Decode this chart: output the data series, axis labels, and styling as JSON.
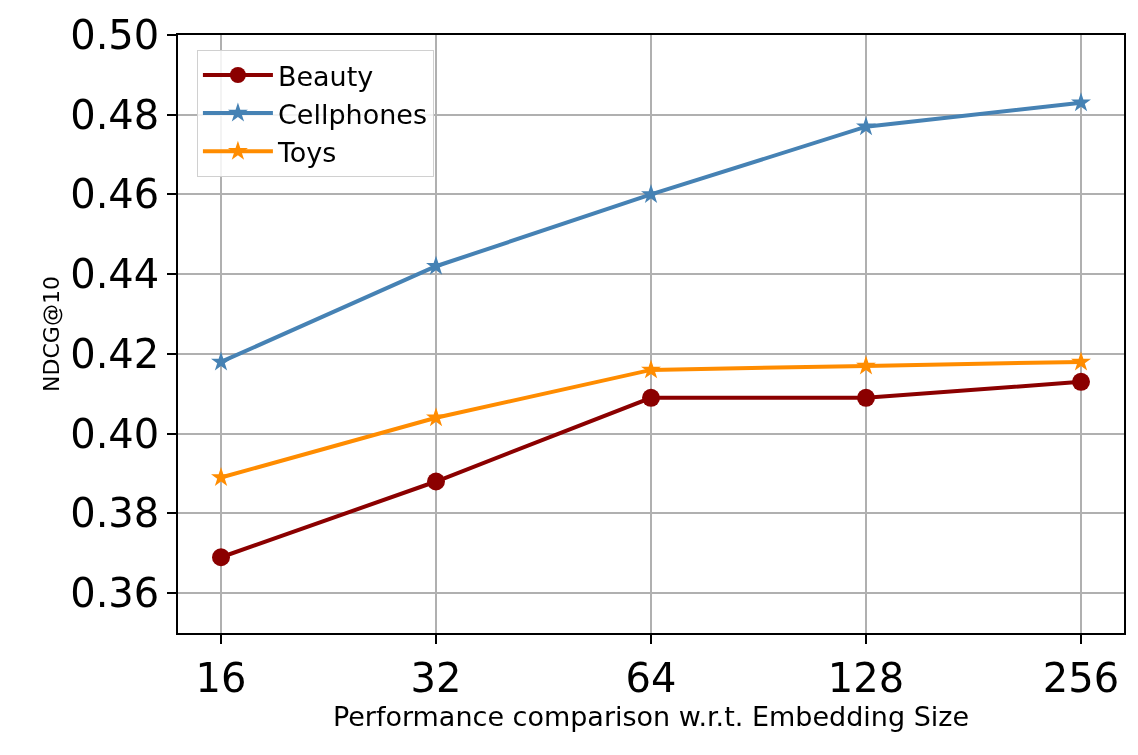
{
  "chart_data": {
    "type": "line",
    "xlabel": "Performance comparison w.r.t. Embedding Size",
    "ylabel": "NDCG@10",
    "categories": [
      "16",
      "32",
      "64",
      "128",
      "256"
    ],
    "ylim": [
      0.35,
      0.5
    ],
    "yticks": [
      0.36,
      0.38,
      {
        "value": 0.4,
        "label": "0.40"
      },
      0.42,
      0.44,
      0.46,
      0.48,
      {
        "value": 0.5,
        "label": "0.50"
      }
    ],
    "series": [
      {
        "name": "Beauty",
        "color": "#8b0000",
        "marker": "circle",
        "values": [
          0.369,
          0.388,
          0.409,
          0.409,
          0.413
        ]
      },
      {
        "name": "Cellphones",
        "color": "#4682b4",
        "marker": "star",
        "values": [
          0.418,
          0.442,
          0.46,
          0.477,
          0.483
        ]
      },
      {
        "name": "Toys",
        "color": "#ff8c00",
        "marker": "star",
        "values": [
          0.389,
          0.404,
          0.416,
          0.417,
          0.418
        ]
      }
    ],
    "grid": true,
    "legend": "top left",
    "line_style": "solid"
  }
}
